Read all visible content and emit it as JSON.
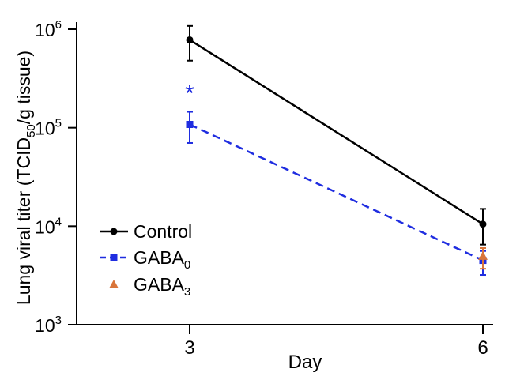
{
  "chart_data": {
    "type": "line",
    "title": "",
    "xlabel": "Day",
    "ylabel": {
      "prefix": "Lung viral titer (TCID",
      "sub": "50",
      "suffix": "/g tissue)"
    },
    "yscale": "log",
    "ylim": [
      1000,
      1000000
    ],
    "xticks": [
      "3",
      "6"
    ],
    "yticks": [
      {
        "base": "10",
        "exp": "3",
        "value": 1000
      },
      {
        "base": "10",
        "exp": "4",
        "value": 10000
      },
      {
        "base": "10",
        "exp": "5",
        "value": 100000
      },
      {
        "base": "10",
        "exp": "6",
        "value": 1000000
      }
    ],
    "series": [
      {
        "name": "Control",
        "name_sub": "",
        "color": "#000000",
        "marker": "circle",
        "line": "solid",
        "x": [
          3,
          6
        ],
        "y": [
          780000,
          10500
        ],
        "err_low": [
          480000,
          6500
        ],
        "err_high": [
          1080000,
          15000
        ]
      },
      {
        "name": "GABA",
        "name_sub": "0",
        "color": "#1f2de0",
        "marker": "square",
        "line": "dashed",
        "x": [
          3,
          6
        ],
        "y": [
          108000,
          4500
        ],
        "err_low": [
          70000,
          3200
        ],
        "err_high": [
          145000,
          5600
        ]
      },
      {
        "name": "GABA",
        "name_sub": "3",
        "color": "#d9753a",
        "marker": "triangle",
        "line": "none",
        "x": [
          6
        ],
        "y": [
          5000
        ],
        "err_low": [
          3700
        ],
        "err_high": [
          6000
        ]
      }
    ],
    "annotations": [
      {
        "text": "*",
        "x": 3,
        "y": 200000,
        "color": "#1f2de0"
      }
    ],
    "legend": "bottom-left",
    "grid": false
  }
}
